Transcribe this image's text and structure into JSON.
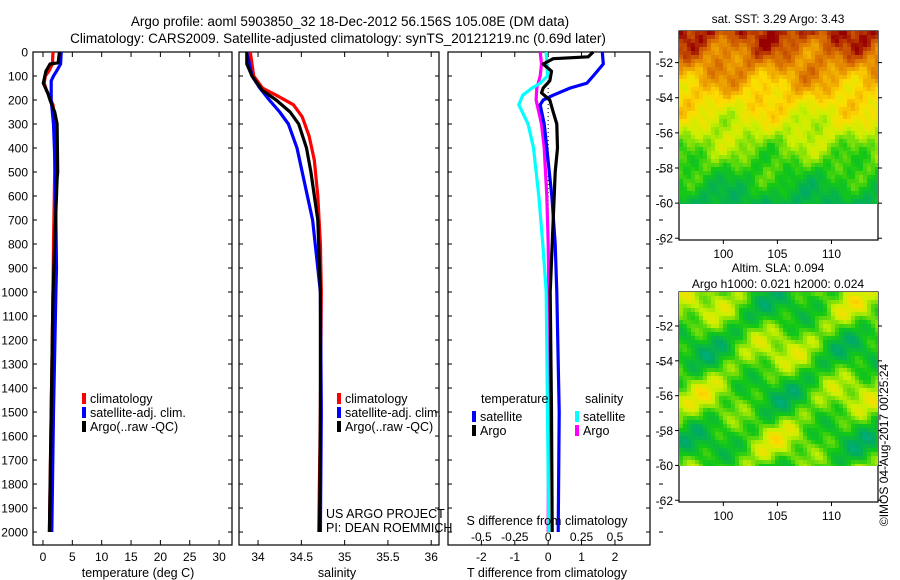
{
  "header": {
    "title_line1": "Argo profile: aoml 5903850_32 18-Dec-2012 56.156S 105.08E (DM data)",
    "title_line2": "Climatology: CARS2009. Satellite-adjusted climatology: synTS_20121219.nc (0.69d later)"
  },
  "credits": {
    "project": "US ARGO PROJECT",
    "pi": "PI: DEAN ROEMMICH",
    "copyright": "©IMOS 04-Aug-2017 00:25:24"
  },
  "chart_data": [
    {
      "id": "temperature",
      "type": "line",
      "xlabel": "temperature (deg C)",
      "ylabel": "depth",
      "xlim": [
        -1.7,
        32.2
      ],
      "ylim": [
        2054,
        0
      ],
      "xticks": [
        0,
        5,
        10,
        15,
        20,
        25,
        30
      ],
      "yticks": [
        0,
        100,
        200,
        300,
        400,
        500,
        600,
        700,
        800,
        900,
        1000,
        1100,
        1200,
        1300,
        1400,
        1500,
        1600,
        1700,
        1800,
        1900,
        2000
      ],
      "legend": [
        "climatology",
        "satellite-adj. clim.",
        "Argo(..raw -QC)"
      ],
      "series": [
        {
          "name": "climatology",
          "color": "#ff0000",
          "depth": [
            0,
            50,
            80,
            100,
            130,
            160,
            180,
            220,
            300,
            500,
            800,
            1000,
            1500,
            2000
          ],
          "values": [
            1.7,
            1.6,
            1.0,
            0.4,
            0.2,
            0.6,
            1.0,
            1.7,
            2.0,
            2.0,
            1.8,
            1.7,
            1.4,
            1.1
          ]
        },
        {
          "name": "satellite-adj. clim.",
          "color": "#0000ff",
          "depth": [
            0,
            50,
            80,
            100,
            120,
            200,
            300,
            500,
            900,
            1000,
            1500,
            2000
          ],
          "values": [
            3.1,
            3.0,
            2.3,
            1.8,
            1.4,
            1.4,
            1.8,
            2.1,
            2.3,
            2.2,
            1.8,
            1.5
          ]
        },
        {
          "name": "Argo(..raw -QC)",
          "color": "#000000",
          "depth": [
            0,
            45,
            50,
            80,
            130,
            170,
            200,
            250,
            300,
            500,
            530,
            800,
            1000,
            1500,
            2000
          ],
          "values": [
            2.8,
            2.6,
            1.2,
            0.5,
            0.05,
            0.8,
            1.2,
            2.0,
            2.4,
            2.5,
            2.4,
            2.0,
            1.7,
            1.4,
            1.1
          ]
        }
      ]
    },
    {
      "id": "salinity",
      "type": "line",
      "xlabel": "salinity",
      "xlim": [
        33.78,
        36.09
      ],
      "ylim": [
        2054,
        0
      ],
      "xticks": [
        34,
        34.5,
        35,
        35.5,
        36
      ],
      "legend": [
        "climatology",
        "satellite-adj. clim.",
        "Argo(..raw -QC)"
      ],
      "series": [
        {
          "name": "climatology",
          "color": "#ff0000",
          "depth": [
            0,
            100,
            150,
            180,
            220,
            270,
            350,
            450,
            600,
            800,
            1000,
            1500,
            2000
          ],
          "values": [
            33.91,
            33.95,
            34.05,
            34.21,
            34.41,
            34.51,
            34.59,
            34.65,
            34.69,
            34.72,
            34.73,
            34.72,
            34.7
          ]
        },
        {
          "name": "satellite-adj. clim.",
          "color": "#0000ff",
          "depth": [
            0,
            100,
            150,
            200,
            250,
            300,
            400,
            500,
            600,
            700,
            900,
            1000,
            1500,
            2000
          ],
          "values": [
            33.87,
            33.93,
            34.02,
            34.13,
            34.25,
            34.35,
            34.45,
            34.51,
            34.57,
            34.63,
            34.69,
            34.72,
            34.73,
            34.72
          ]
        },
        {
          "name": "Argo(..raw -QC)",
          "color": "#000000",
          "depth": [
            0,
            50,
            100,
            160,
            200,
            250,
            300,
            400,
            500,
            700,
            1000,
            1500,
            2000
          ],
          "values": [
            33.87,
            33.87,
            33.93,
            34.05,
            34.21,
            34.37,
            34.47,
            34.56,
            34.61,
            34.69,
            34.72,
            34.72,
            34.71
          ]
        }
      ]
    },
    {
      "id": "difference",
      "type": "line",
      "xlabel": "T difference from climatology",
      "x2label": "S difference from climatology",
      "xlim": [
        -3.0,
        3.05
      ],
      "ylim": [
        2054,
        0
      ],
      "xticks": [
        -2,
        -1,
        0,
        1,
        2
      ],
      "x2ticks": [
        -0.5,
        -0.25,
        0,
        0.25,
        0.5
      ],
      "x2_tick_labels": [
        "-0.5",
        "-0.25",
        "0",
        "0.25",
        "0.5"
      ],
      "legend_temperature_title": "temperature",
      "legend_salinity_title": "salinity",
      "legend": [
        "satellite",
        "Argo",
        "satellite",
        "Argo"
      ],
      "series": [
        {
          "name": "salinity Argo",
          "color": "#ff00ff",
          "axis": "S",
          "depth": [
            0,
            50,
            100,
            150,
            200,
            300,
            400,
            600,
            800,
            1000,
            2000
          ],
          "values": [
            -0.06,
            -0.05,
            -0.06,
            -0.085,
            -0.09,
            -0.05,
            -0.03,
            -0.01,
            0.0,
            0.005,
            0.0
          ]
        },
        {
          "name": "salinity satellite",
          "color": "#00ffff",
          "axis": "S",
          "depth": [
            0,
            50,
            100,
            130,
            150,
            180,
            220,
            300,
            400,
            600,
            800,
            1000,
            2000
          ],
          "values": [
            -0.015,
            -0.01,
            -0.005,
            -0.06,
            -0.12,
            -0.19,
            -0.22,
            -0.15,
            -0.11,
            -0.07,
            -0.04,
            -0.015,
            0.005
          ]
        },
        {
          "name": "temperature satellite",
          "color": "#0000ff",
          "axis": "T",
          "depth": [
            0,
            50,
            100,
            130,
            150,
            180,
            200,
            220,
            300,
            400,
            600,
            800,
            1000,
            1500,
            2000
          ],
          "values": [
            1.62,
            1.65,
            1.35,
            1.16,
            0.66,
            0.15,
            -0.15,
            -0.24,
            -0.12,
            -0.04,
            0.11,
            0.21,
            0.26,
            0.33,
            0.3
          ]
        },
        {
          "name": "temperature Argo",
          "color": "#000000",
          "axis": "T",
          "depth": [
            0,
            20,
            28,
            50,
            80,
            120,
            150,
            170,
            200,
            250,
            300,
            400,
            500,
            700,
            1000,
            1500,
            2000
          ],
          "values": [
            1.35,
            1.2,
            0.15,
            -0.15,
            0.1,
            0.05,
            -0.15,
            -0.2,
            0.05,
            0.15,
            0.26,
            0.28,
            0.21,
            0.15,
            0.06,
            0.1,
            0.12
          ]
        }
      ]
    },
    {
      "id": "sst_map",
      "type": "heatmap",
      "title": "sat. SST: 3.29 Argo: 3.43",
      "xlim": [
        95.9,
        114.3
      ],
      "ylim": [
        -62.1,
        -50.2
      ],
      "data_lat_min": -60,
      "xticks": [
        100,
        105,
        110
      ],
      "yticks": [
        -52,
        -54,
        -56,
        -58,
        -60,
        -62
      ],
      "marker": {
        "lon": 105.08,
        "lat": -56.156
      }
    },
    {
      "id": "sla_map",
      "type": "heatmap",
      "title": "Altim. SLA: 0.094",
      "subtitle": "Argo h1000: 0.021 h2000: 0.024",
      "xlim": [
        95.9,
        114.3
      ],
      "ylim": [
        -62.1,
        -50.05
      ],
      "data_lat_min": -60,
      "xticks": [
        100,
        105,
        110
      ],
      "yticks": [
        -52,
        -54,
        -56,
        -58,
        -60,
        -62
      ],
      "marker": {
        "lon": 105.08,
        "lat": -56.156
      }
    }
  ]
}
